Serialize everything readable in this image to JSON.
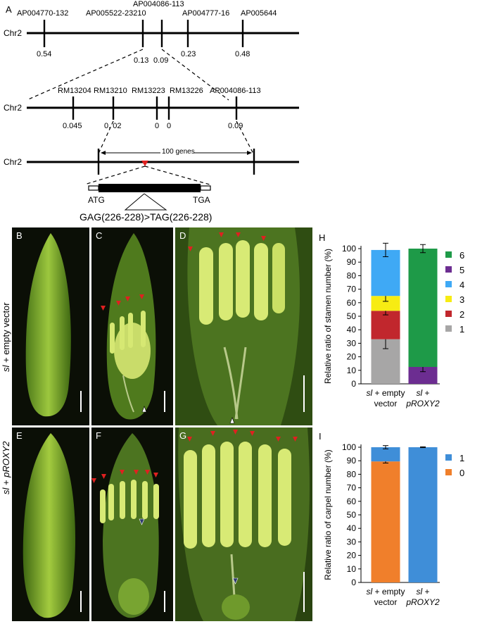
{
  "panel_a": {
    "letter": "A",
    "chr_label": "Chr2",
    "row1": {
      "markers": [
        {
          "name": "AP004770-132",
          "value": "0.54"
        },
        {
          "name": "AP005522-23210",
          "value": "0.13"
        },
        {
          "name": "AP004086-113",
          "value": "0.09"
        },
        {
          "name": "AP004777-16",
          "value": "0.23"
        },
        {
          "name": "AP005644",
          "value": "0.48"
        }
      ]
    },
    "row2": {
      "markers": [
        {
          "name": "RM13204",
          "value": "0.045"
        },
        {
          "name": "RM13210",
          "value": "0. 02"
        },
        {
          "name": "RM13223",
          "value": "0"
        },
        {
          "name": "RM13226",
          "value": "0"
        },
        {
          "name": "AP004086-113",
          "value": "0.09"
        }
      ]
    },
    "row3": {
      "genes_label": "100 genes"
    },
    "gene": {
      "start": "ATG",
      "end": "TGA",
      "mutation": "GAG(226-228)>TAG(226-228)"
    }
  },
  "photos": {
    "b": "B",
    "c": "C",
    "d": "D",
    "e": "E",
    "f": "F",
    "g": "G"
  },
  "row_labels": {
    "top_italic": "sl",
    "top_rest": " + empty vector",
    "bottom_italic": "sl",
    "bottom_plus": " + ",
    "bottom_gene": "pROXY2"
  },
  "chart_data": [
    {
      "type": "bar",
      "panel": "H",
      "stacked": true,
      "categories": [
        [
          "sl",
          " + empty",
          "vector"
        ],
        [
          "sl",
          " +",
          "pROXY2"
        ]
      ],
      "ylabel": "Relative ratio of stamen number (%)",
      "ylim": [
        0,
        100
      ],
      "yticks": [
        0,
        10,
        20,
        30,
        40,
        50,
        60,
        70,
        80,
        90,
        100
      ],
      "legend_position": "right",
      "series": [
        {
          "name": "1",
          "color": "#a7a6a6",
          "values": [
            33,
            0
          ],
          "err": [
            7,
            0
          ]
        },
        {
          "name": "2",
          "color": "#c1272d",
          "values": [
            21,
            0
          ],
          "err": [
            3,
            0
          ]
        },
        {
          "name": "3",
          "color": "#f7ec13",
          "values": [
            11,
            0
          ],
          "err": [
            4,
            0
          ]
        },
        {
          "name": "4",
          "color": "#3fa9f5",
          "values": [
            34,
            0
          ],
          "err": [
            5,
            0
          ]
        },
        {
          "name": "5",
          "color": "#6c2d91",
          "values": [
            0,
            12.5
          ],
          "err": [
            0,
            3.5
          ]
        },
        {
          "name": "6",
          "color": "#1e9a48",
          "values": [
            0,
            87.5
          ],
          "err": [
            0,
            3
          ]
        }
      ]
    },
    {
      "type": "bar",
      "panel": "I",
      "stacked": true,
      "categories": [
        [
          "sl",
          " + empty",
          "vector"
        ],
        [
          "sl",
          " +",
          "pROXY2"
        ]
      ],
      "ylabel": "Relative ratio of carpel number (%)",
      "ylim": [
        0,
        100
      ],
      "yticks": [
        0,
        10,
        20,
        30,
        40,
        50,
        60,
        70,
        80,
        90,
        100
      ],
      "legend_position": "right",
      "series": [
        {
          "name": "0",
          "color": "#f07f2b",
          "values": [
            89.5,
            0
          ],
          "err": [
            1.2,
            0
          ]
        },
        {
          "name": "1",
          "color": "#3f8ed8",
          "values": [
            10.5,
            100
          ],
          "err": [
            1.2,
            0.3
          ]
        }
      ]
    }
  ]
}
